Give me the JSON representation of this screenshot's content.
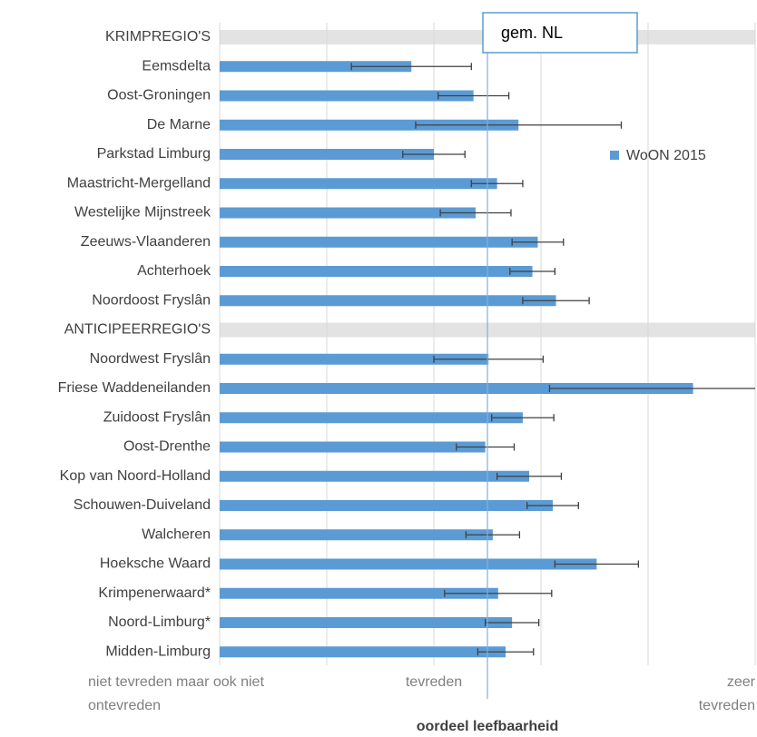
{
  "chart_data": {
    "type": "bar",
    "orientation": "horizontal",
    "categories": [
      "KRIMPREGIO'S",
      "Eemsdelta",
      "Oost-Groningen",
      "De Marne",
      "Parkstad Limburg",
      "Maastricht-Mergelland",
      "Westelijke Mijnstreek",
      "Zeeuws-Vlaanderen",
      "Achterhoek",
      "Noordoost Fryslân",
      "ANTICIPEERREGIO'S",
      "Noordwest Fryslân",
      "Friese Waddeneilanden",
      "Zuidoost Fryslân",
      "Oost-Drenthe",
      "Kop van Noord-Holland",
      "Schouwen-Duiveland",
      "Walcheren",
      "Hoeksche Waard",
      "Krimpenerwaard*",
      "Noord-Limburg*",
      "Midden-Limburg"
    ],
    "series": [
      {
        "name": "WoON 2015",
        "color": "#5b9bd5",
        "values": [
          null,
          1.79,
          2.37,
          2.79,
          2.0,
          2.59,
          2.39,
          2.97,
          2.92,
          3.14,
          null,
          2.51,
          4.42,
          2.83,
          2.48,
          2.89,
          3.11,
          2.55,
          3.52,
          2.6,
          2.73,
          2.67
        ],
        "errors": [
          null,
          0.56,
          0.33,
          0.96,
          0.29,
          0.24,
          0.33,
          0.24,
          0.21,
          0.31,
          null,
          0.51,
          1.34,
          0.29,
          0.27,
          0.3,
          0.24,
          0.25,
          0.39,
          0.5,
          0.25,
          0.26
        ]
      }
    ],
    "xlim": [
      0,
      5
    ],
    "xticks": [
      {
        "value": 0,
        "label": "niet tevreden maar ook niet ontevreden"
      },
      {
        "value": 2,
        "label": "tevreden"
      },
      {
        "value": 5,
        "label": "zeer tevreden"
      }
    ],
    "xgrid": [
      1,
      2,
      3,
      4,
      5
    ],
    "xlabel": "oordeel leefbaarheid",
    "reference": {
      "value": 2.5,
      "label": "gem. NL"
    },
    "legend": "right"
  }
}
